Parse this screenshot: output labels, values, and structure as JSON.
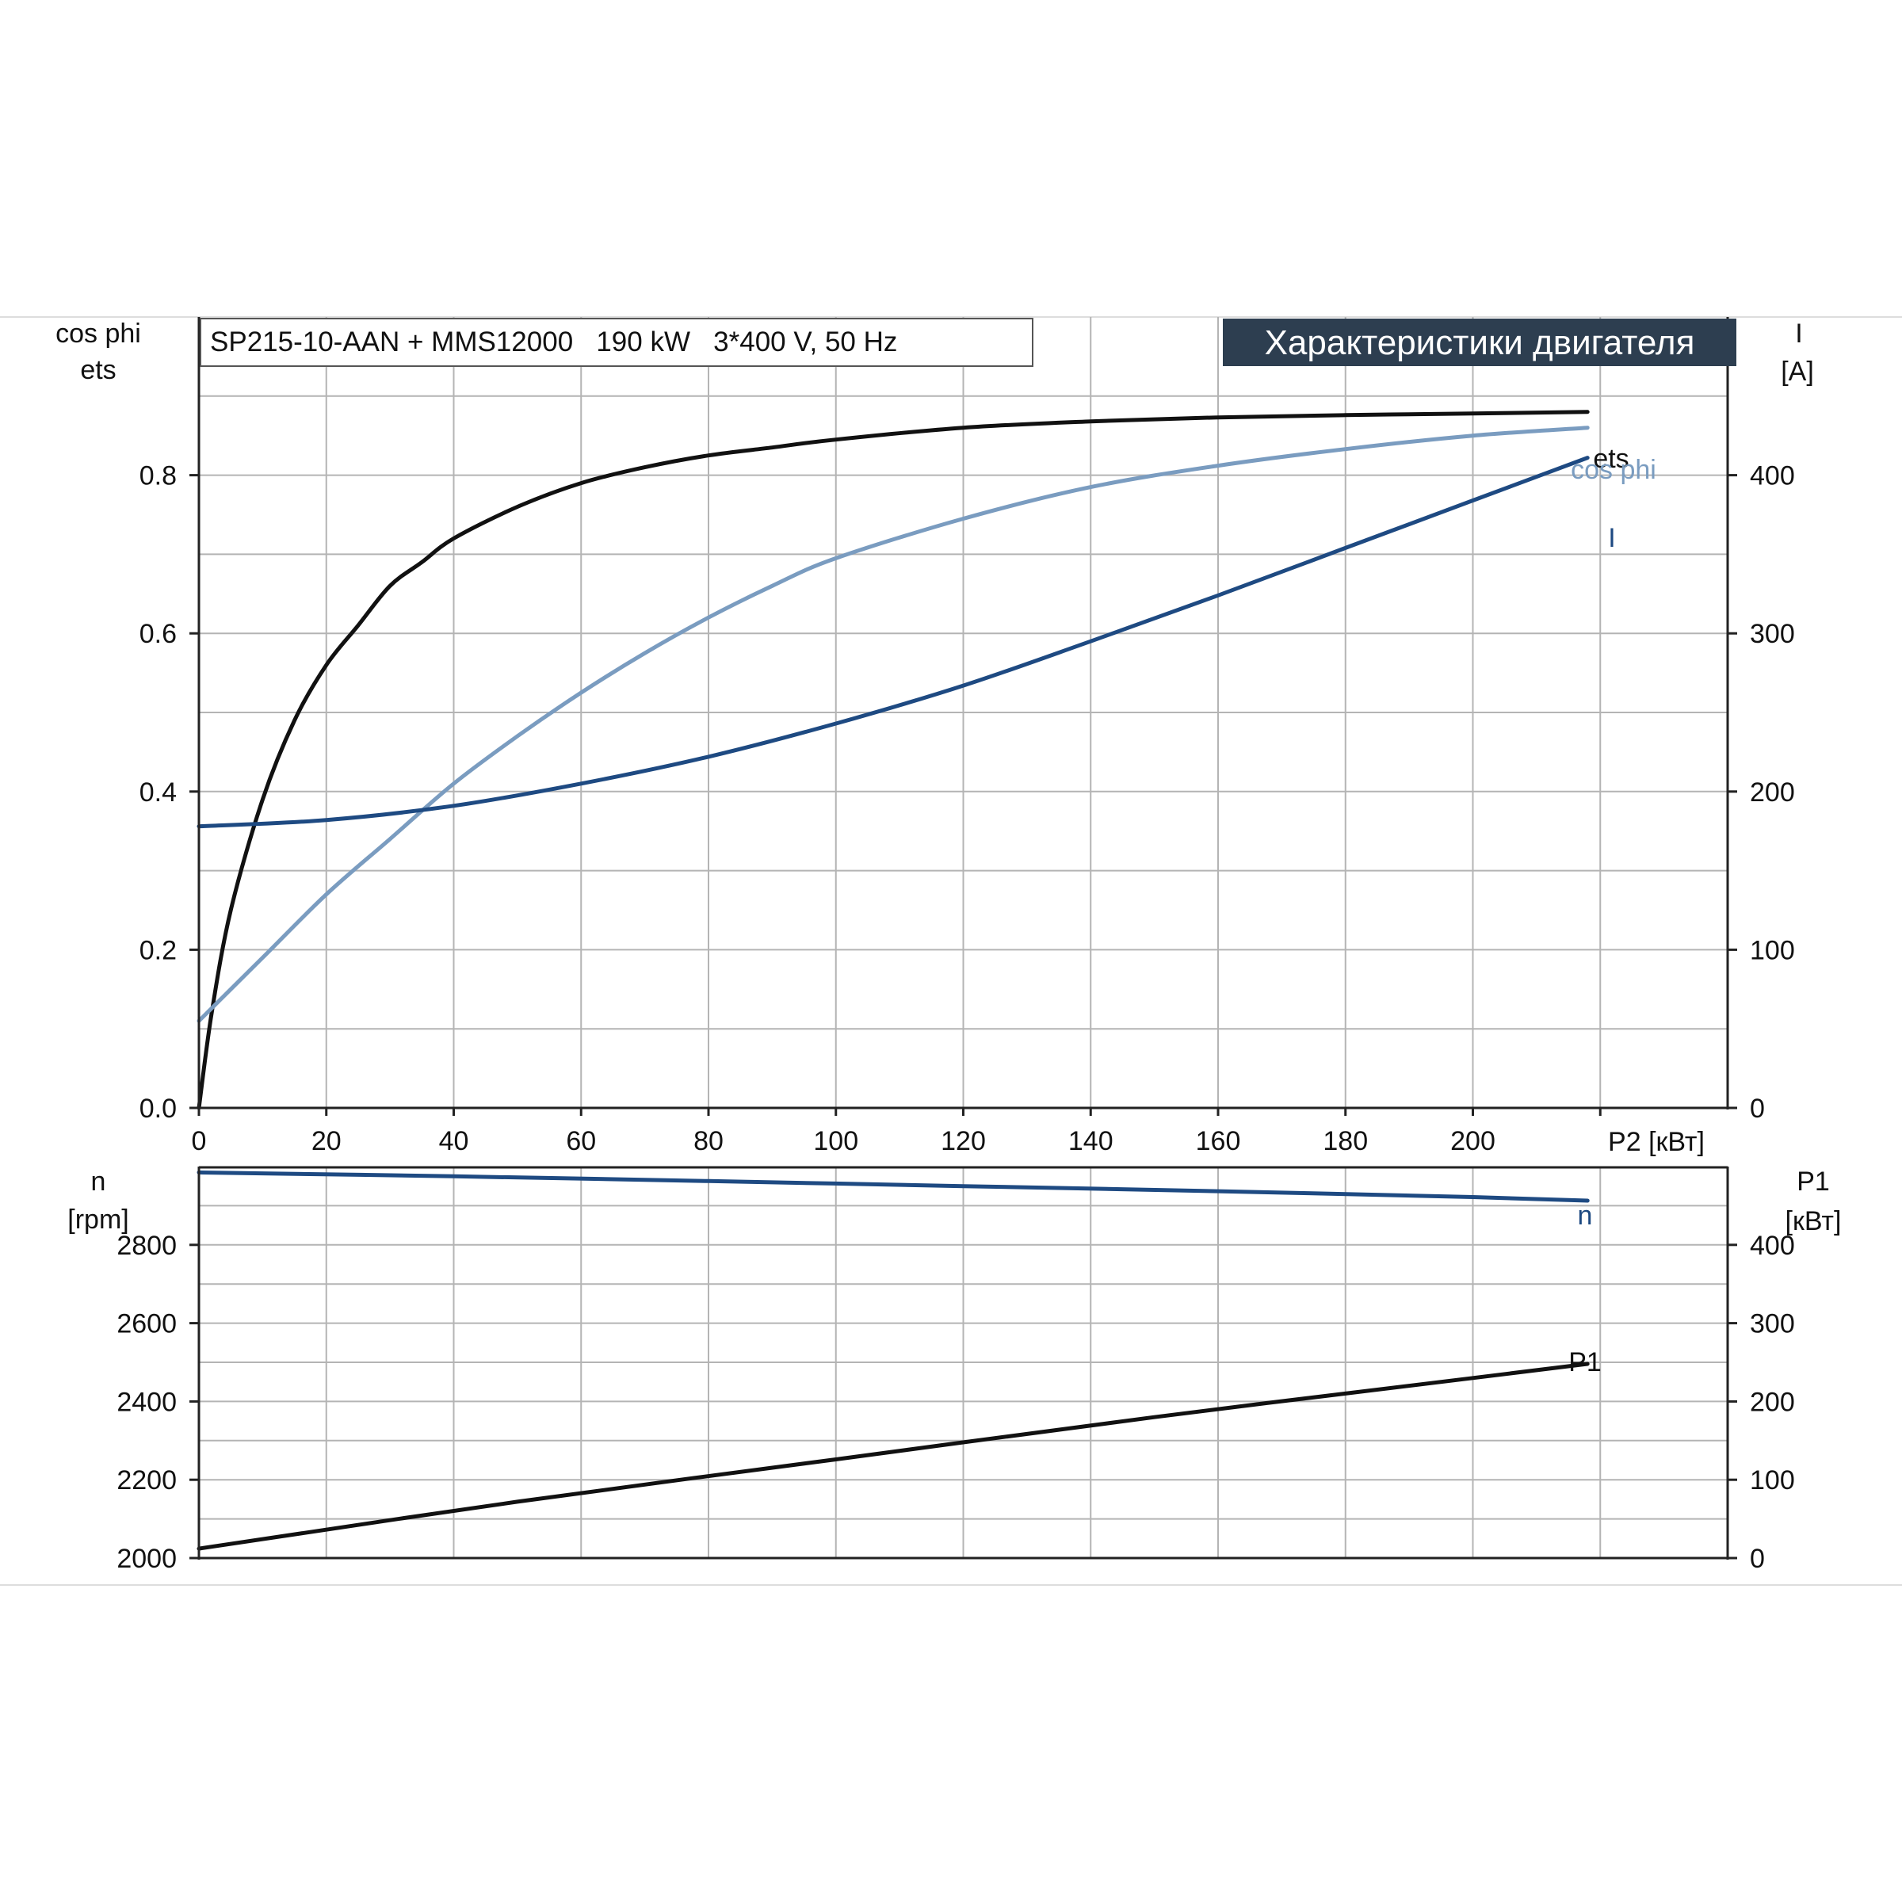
{
  "header": {
    "spec": "SP215-10-AAN + MMS12000   190 kW   3*400 V, 50 Hz",
    "banner": "Характеристики двигателя"
  },
  "colors": {
    "ets": "#111111",
    "cos_phi": "#7a9cc0",
    "I": "#1e4a82",
    "n": "#1e4a82",
    "P1": "#111111",
    "banner_bg": "#2d3e50"
  },
  "chart_data": [
    {
      "type": "line",
      "title": "",
      "xlabel": "P2 [кВт]",
      "ylabel_left_1": "cos phi",
      "ylabel_left_2": "ets",
      "ylabel_right_1": "I",
      "ylabel_right_2": "[A]",
      "xlim": [
        0,
        240
      ],
      "x_ticks": [
        "0",
        "20",
        "40",
        "60",
        "80",
        "100",
        "120",
        "140",
        "160",
        "180",
        "200"
      ],
      "ylim_left": [
        0,
        1.0
      ],
      "y_ticks_left": [
        "0.0",
        "0.2",
        "0.4",
        "0.6",
        "0.8"
      ],
      "ylim_right": [
        0,
        500
      ],
      "y_ticks_right": [
        "0",
        "100",
        "200",
        "300",
        "400"
      ],
      "grid": true,
      "series": [
        {
          "name": "ets",
          "axis": "left",
          "x": [
            0,
            2,
            5,
            10,
            15,
            20,
            25,
            30,
            35,
            40,
            50,
            60,
            70,
            80,
            90,
            100,
            120,
            140,
            160,
            180,
            200,
            218
          ],
          "y": [
            0.0,
            0.12,
            0.25,
            0.39,
            0.49,
            0.56,
            0.61,
            0.66,
            0.69,
            0.72,
            0.76,
            0.79,
            0.81,
            0.825,
            0.835,
            0.845,
            0.86,
            0.868,
            0.873,
            0.876,
            0.878,
            0.88
          ]
        },
        {
          "name": "cos phi",
          "axis": "left",
          "x": [
            0,
            10,
            20,
            30,
            40,
            50,
            60,
            70,
            80,
            90,
            100,
            120,
            140,
            160,
            180,
            200,
            218
          ],
          "y": [
            0.11,
            0.19,
            0.27,
            0.34,
            0.41,
            0.47,
            0.525,
            0.575,
            0.62,
            0.66,
            0.695,
            0.745,
            0.785,
            0.812,
            0.833,
            0.85,
            0.86
          ]
        },
        {
          "name": "I",
          "axis": "right",
          "x": [
            0,
            20,
            40,
            60,
            80,
            100,
            120,
            140,
            160,
            180,
            200,
            218
          ],
          "y": [
            178,
            182,
            191,
            205,
            222,
            243,
            267,
            295,
            324,
            354,
            384,
            411
          ]
        }
      ]
    },
    {
      "type": "line",
      "title": "",
      "xlabel": "",
      "ylabel_left_1": "n",
      "ylabel_left_2": "[rpm]",
      "ylabel_right_1": "P1",
      "ylabel_right_2": "[кВт]",
      "xlim": [
        0,
        240
      ],
      "ylim_left": [
        2000,
        3000
      ],
      "y_ticks_left": [
        "2000",
        "2200",
        "2400",
        "2600",
        "2800"
      ],
      "ylim_right": [
        0,
        500
      ],
      "y_ticks_right": [
        "0",
        "100",
        "200",
        "300",
        "400"
      ],
      "grid": true,
      "series": [
        {
          "name": "n",
          "axis": "left",
          "x": [
            0,
            40,
            80,
            120,
            160,
            200,
            218
          ],
          "y": [
            2985,
            2975,
            2963,
            2950,
            2937,
            2922,
            2913
          ]
        },
        {
          "name": "P1",
          "axis": "right",
          "x": [
            0,
            50,
            100,
            150,
            200,
            218
          ],
          "y": [
            12,
            72,
            126,
            180,
            230,
            248
          ]
        }
      ]
    }
  ]
}
